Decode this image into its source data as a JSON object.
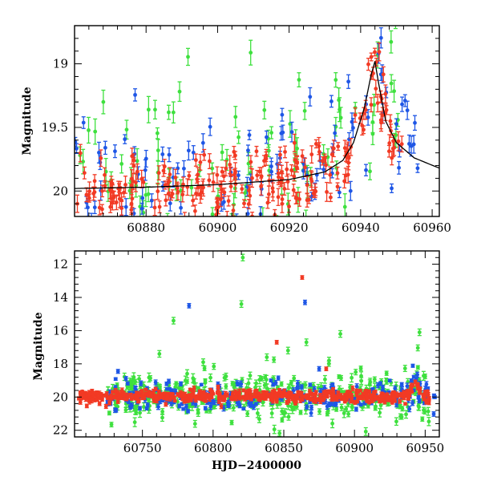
{
  "colors": {
    "green": "#3ee03e",
    "blue": "#1e56e6",
    "red": "#f23a24",
    "model": "#000000"
  },
  "chart_data": [
    {
      "type": "scatter",
      "title": "",
      "xlabel": "",
      "ylabel": "Magnitude",
      "xlim": [
        60860,
        60962
      ],
      "ylim": [
        20.2,
        18.7
      ],
      "y_inverted": true,
      "grid": false,
      "legend": "none",
      "error_bars": true,
      "x_ticks": [
        60880,
        60900,
        60920,
        60940,
        60960
      ],
      "x_tick_labels": [
        "60880",
        "60900",
        "60920",
        "60940",
        "60960"
      ],
      "y_ticks": [
        19,
        19.5,
        20
      ],
      "y_tick_labels": [
        "19",
        "19.5",
        "20"
      ],
      "baseline_mag": 20.0,
      "peak": {
        "x": 60944,
        "y": 18.98
      },
      "model_curve": {
        "x": [
          60860,
          60880,
          60900,
          60920,
          60930,
          60935,
          60938,
          60941,
          60943,
          60944,
          60945,
          60947,
          60950,
          60955,
          60962
        ],
        "y": [
          19.98,
          19.97,
          19.95,
          19.91,
          19.85,
          19.76,
          19.62,
          19.35,
          19.08,
          18.98,
          19.15,
          19.45,
          19.62,
          19.74,
          19.82
        ]
      },
      "series": [
        {
          "color": "#3ee03e",
          "n_points": 115,
          "scatter_mag": 0.42,
          "error_mag": 0.07,
          "x_range": [
            60860,
            60952
          ]
        },
        {
          "color": "#1e56e6",
          "n_points": 115,
          "scatter_mag": 0.3,
          "error_mag": 0.055,
          "x_range": [
            60860,
            60957
          ]
        },
        {
          "color": "#f23a24",
          "n_points": 230,
          "scatter_mag": 0.13,
          "error_mag": 0.05,
          "x_range": [
            60860,
            60952
          ]
        }
      ]
    },
    {
      "type": "scatter",
      "title": "",
      "xlabel": "HJD−2400000",
      "ylabel": "Magnitude",
      "xlim": [
        60702,
        60960
      ],
      "ylim": [
        22.4,
        11.2
      ],
      "y_inverted": true,
      "grid": false,
      "legend": "none",
      "error_bars": true,
      "x_ticks": [
        60750,
        60800,
        60850,
        60900,
        60950
      ],
      "x_tick_labels": [
        "60750",
        "60800",
        "60850",
        "60900",
        "60950"
      ],
      "y_ticks": [
        12,
        14,
        16,
        18,
        20,
        22
      ],
      "y_tick_labels": [
        "12",
        "14",
        "16",
        "18",
        "20",
        "22"
      ],
      "series": [
        {
          "color": "#3ee03e",
          "n_points": 380,
          "scatter_mag": 0.8,
          "error_mag": 0.18,
          "x_range": [
            60725,
            60955
          ],
          "outliers": [
            {
              "x": 60821,
              "y": 11.6
            },
            {
              "x": 60820,
              "y": 14.4
            },
            {
              "x": 60772,
              "y": 15.4
            },
            {
              "x": 60946,
              "y": 16.1
            },
            {
              "x": 60890,
              "y": 16.2
            },
            {
              "x": 60866,
              "y": 16.7
            },
            {
              "x": 60762,
              "y": 17.4
            },
            {
              "x": 60838,
              "y": 17.6
            },
            {
              "x": 60882,
              "y": 17.8
            },
            {
              "x": 60793,
              "y": 17.9
            },
            {
              "x": 60853,
              "y": 17.2
            }
          ]
        },
        {
          "color": "#1e56e6",
          "n_points": 260,
          "scatter_mag": 0.45,
          "error_mag": 0.12,
          "x_range": [
            60725,
            60957
          ],
          "outliers": [
            {
              "x": 60783,
              "y": 14.5
            },
            {
              "x": 60865,
              "y": 14.3
            },
            {
              "x": 60875,
              "y": 18.3
            }
          ]
        },
        {
          "color": "#f23a24",
          "n_points": 560,
          "scatter_mag": 0.18,
          "error_mag": 0.1,
          "x_range": [
            60705,
            60955
          ],
          "outliers": [
            {
              "x": 60863,
              "y": 12.8
            },
            {
              "x": 60845,
              "y": 16.7
            },
            {
              "x": 60880,
              "y": 18.3
            }
          ]
        }
      ]
    }
  ]
}
